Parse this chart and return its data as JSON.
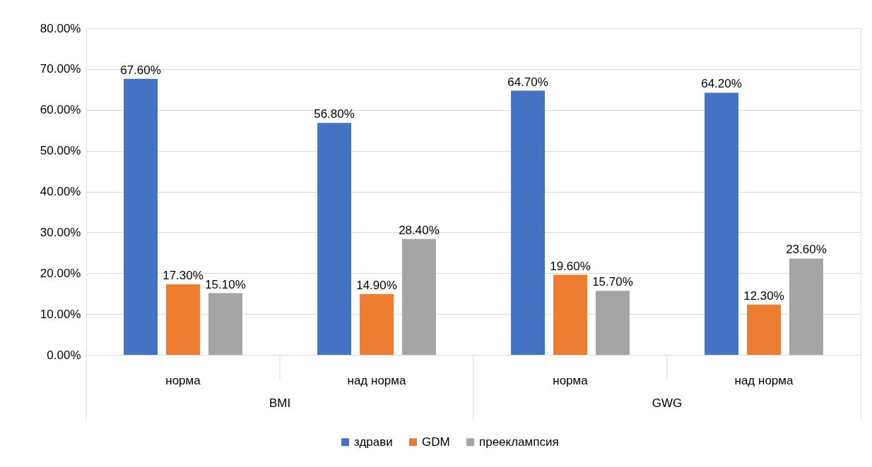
{
  "chart_data": {
    "type": "bar",
    "categories": [
      "норма",
      "над норма",
      "норма",
      "над норма"
    ],
    "series": [
      {
        "name": "здрави",
        "color": "#4472c4",
        "values": [
          67.6,
          56.8,
          64.7,
          64.2
        ],
        "value_labels": [
          "67.60%",
          "56.80%",
          "64.70%",
          "64.20%"
        ]
      },
      {
        "name": "GDM",
        "color": "#ed7d31",
        "values": [
          17.3,
          14.9,
          19.6,
          12.3
        ],
        "value_labels": [
          "17.30%",
          "14.90%",
          "19.60%",
          "12.30%"
        ]
      },
      {
        "name": "прееклампсия",
        "color": "#a5a5a5",
        "values": [
          15.1,
          28.4,
          15.7,
          23.6
        ],
        "value_labels": [
          "15.10%",
          "28.40%",
          "15.70%",
          "23.60%"
        ]
      }
    ],
    "annotations": [
      "BMI",
      "GWG"
    ],
    "ylim": [
      0,
      80
    ],
    "yticks": [
      {
        "value": 0,
        "label": "0.00%"
      },
      {
        "value": 10,
        "label": "10.00%"
      },
      {
        "value": 20,
        "label": "20.00%"
      },
      {
        "value": 30,
        "label": "30.00%"
      },
      {
        "value": 40,
        "label": "40.00%"
      },
      {
        "value": 50,
        "label": "50.00%"
      },
      {
        "value": 60,
        "label": "60.00%"
      },
      {
        "value": 70,
        "label": "70.00%"
      },
      {
        "value": 80,
        "label": "80.00%"
      }
    ],
    "grid": "y",
    "legend": "bottom"
  }
}
